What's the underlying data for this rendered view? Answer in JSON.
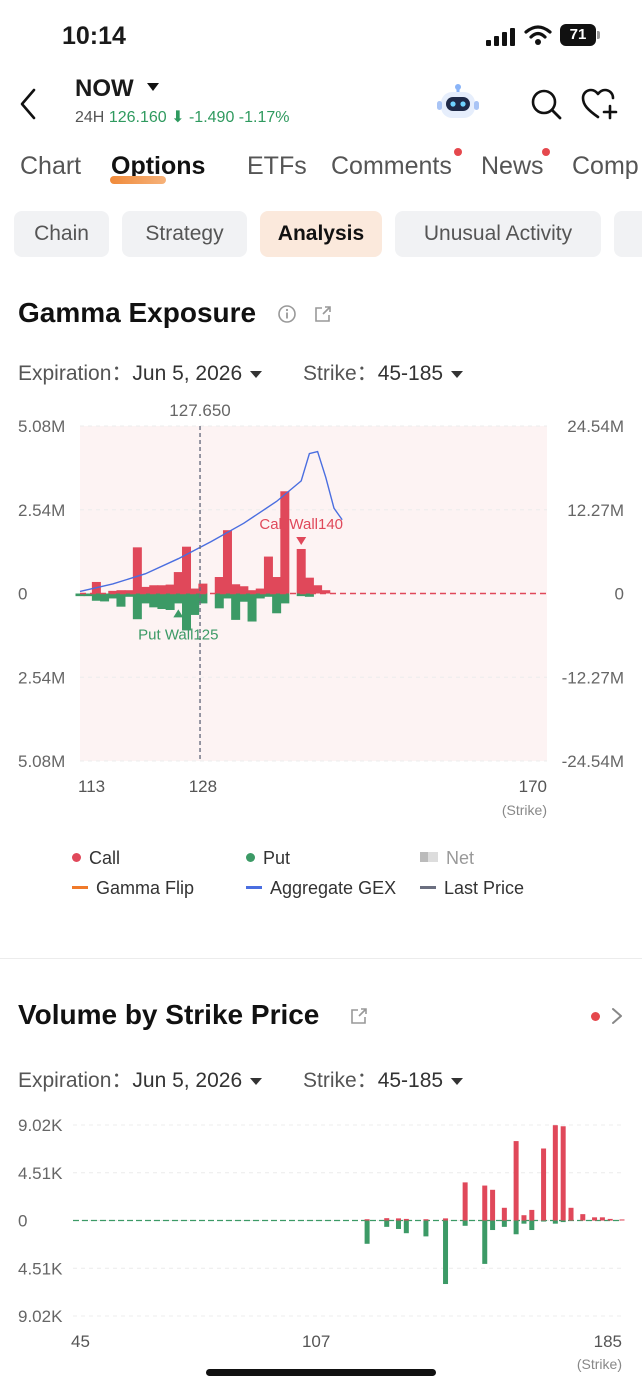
{
  "status_bar": {
    "time": "10:14",
    "battery": "71"
  },
  "header": {
    "ticker": "NOW",
    "quote_label": "24H",
    "price": "126.160",
    "change": "-1.490",
    "change_pct": "-1.17%",
    "down_arrow": "⬇",
    "quote_color": "#2f9a5f"
  },
  "main_tabs": [
    "Chart",
    "Options",
    "ETFs",
    "Comments",
    "News",
    "Comp"
  ],
  "active_main_tab": "Options",
  "sub_tabs": [
    "Chain",
    "Strategy",
    "Analysis",
    "Unusual Activity"
  ],
  "active_sub_tab": "Analysis",
  "gamma": {
    "title": "Gamma Exposure",
    "expiration_label": "Expiration：",
    "expiration_value": "Jun 5, 2026",
    "strike_label": "Strike：",
    "strike_value": "45-185",
    "legend": {
      "call": "Call",
      "put": "Put",
      "net": "Net",
      "gamma_flip": "Gamma Flip",
      "aggregate_gex": "Aggregate GEX",
      "last_price": "Last Price"
    }
  },
  "volume": {
    "title": "Volume by Strike Price",
    "expiration_label": "Expiration：",
    "expiration_value": "Jun 5, 2026",
    "strike_label": "Strike：",
    "strike_value": "45-185"
  },
  "colors": {
    "call": "#e0485a",
    "put": "#3c9a66",
    "aggregate_gex": "#4a6ee0",
    "gamma_flip": "#f07a2a",
    "last_price": "#6b6f80",
    "accent_tab": "#f08a3a"
  },
  "chart_data": [
    {
      "type": "bar",
      "title": "Gamma Exposure",
      "x_unit_label": "(Strike)",
      "x_tick_labels": [
        "113",
        "128",
        "170"
      ],
      "x_range": [
        113,
        170
      ],
      "y_left_tick_labels": [
        "5.08M",
        "2.54M",
        "0",
        "2.54M",
        "5.08M"
      ],
      "y_right_tick_labels": [
        "24.54M",
        "12.27M",
        "0",
        "-12.27M",
        "-24.54M"
      ],
      "y_left_range": [
        -5.08,
        5.08
      ],
      "y_right_range": [
        -24.54,
        24.54
      ],
      "last_price": 127.65,
      "last_price_label": "127.650",
      "call_wall": {
        "strike": 140,
        "label": "Call Wall140"
      },
      "put_wall": {
        "strike": 125,
        "label": "Put Wall125"
      },
      "strikes": [
        113,
        114,
        115,
        116,
        117,
        118,
        119,
        120,
        121,
        122,
        123,
        124,
        125,
        126,
        127,
        128,
        130,
        131,
        132,
        133,
        134,
        135,
        136,
        137,
        138,
        140,
        141,
        142,
        143,
        144,
        145
      ],
      "series": [
        {
          "name": "Call",
          "values": [
            0.04,
            0.04,
            0.35,
            0.06,
            0.08,
            0.1,
            0.1,
            1.4,
            0.2,
            0.25,
            0.25,
            0.27,
            0.65,
            1.42,
            0.15,
            0.3,
            0.5,
            1.92,
            0.28,
            0.22,
            0.1,
            0.15,
            1.12,
            0.5,
            3.1,
            1.35,
            0.48,
            0.25,
            0.1,
            0.04,
            0.04
          ]
        },
        {
          "name": "Put",
          "values": [
            -0.08,
            -0.08,
            -0.22,
            -0.24,
            -0.15,
            -0.4,
            -0.1,
            -0.78,
            -0.3,
            -0.42,
            -0.47,
            -0.5,
            -0.3,
            -1.12,
            -0.65,
            -0.3,
            -0.45,
            -0.15,
            -0.8,
            -0.25,
            -0.85,
            -0.15,
            -0.1,
            -0.6,
            -0.3,
            -0.08,
            -0.1,
            -0.05,
            -0.05,
            -0.04,
            -0.04
          ]
        }
      ],
      "aggregate_gex": {
        "name": "Aggregate GEX",
        "x": [
          113,
          117,
          121,
          125,
          129,
          133,
          137,
          140,
          141,
          142,
          143,
          144,
          145
        ],
        "y": [
          0.3,
          1.4,
          2.9,
          5.1,
          7.6,
          10.3,
          13.5,
          16.5,
          20.5,
          20.8,
          17.0,
          12.5,
          10.8
        ]
      }
    },
    {
      "type": "bar",
      "title": "Volume by Strike Price",
      "x_unit_label": "(Strike)",
      "x_tick_labels": [
        "45",
        "107",
        "185"
      ],
      "x_range": [
        45,
        185
      ],
      "y_tick_labels": [
        "9.02K",
        "4.51K",
        "0",
        "4.51K",
        "9.02K"
      ],
      "y_range": [
        -9.02,
        9.02
      ],
      "strikes": [
        120,
        125,
        128,
        130,
        135,
        140,
        145,
        150,
        152,
        155,
        158,
        160,
        162,
        165,
        168,
        170,
        172,
        175,
        178,
        180,
        182,
        185
      ],
      "series": [
        {
          "name": "Call",
          "values": [
            0.12,
            0.22,
            0.2,
            0.15,
            0.12,
            0.2,
            3.6,
            3.3,
            2.9,
            1.2,
            7.5,
            0.5,
            1.0,
            6.8,
            9.0,
            8.9,
            1.2,
            0.6,
            0.3,
            0.3,
            0.15,
            0.1
          ]
        },
        {
          "name": "Put",
          "values": [
            -2.2,
            -0.6,
            -0.8,
            -1.2,
            -1.5,
            -6.0,
            -0.5,
            -4.1,
            -0.9,
            -0.6,
            -1.3,
            -0.3,
            -0.9,
            -0.1,
            -0.3,
            -0.15,
            -0.05,
            -0.05,
            -0.05,
            -0.05,
            -0.05,
            -0.05
          ]
        }
      ]
    }
  ]
}
